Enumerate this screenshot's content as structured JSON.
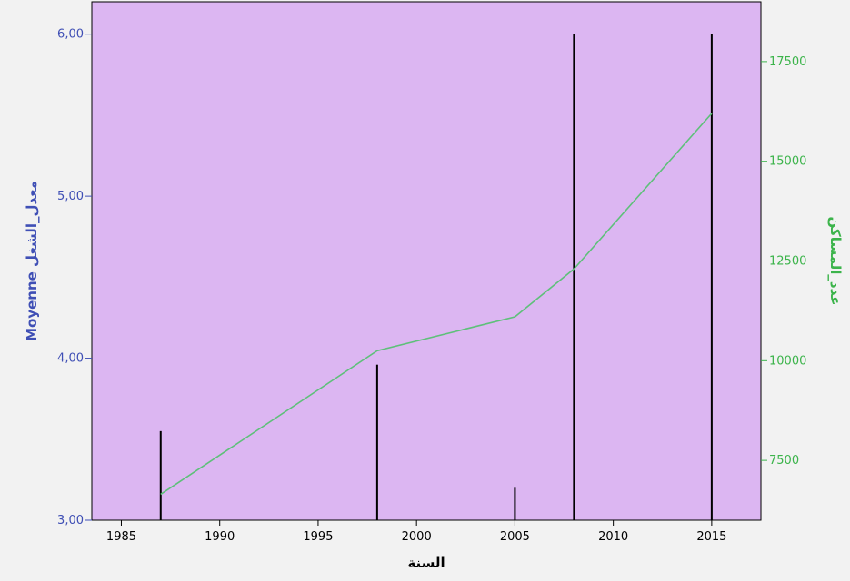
{
  "chart_data": {
    "type": "bar",
    "xlabel": "السنة",
    "ylabel_left": "Moyenne معدل_الشغل",
    "ylabel_right": "عدد_المساكن",
    "xlim": [
      1983.5,
      2017.5
    ],
    "ylim_left": [
      3.0,
      6.2
    ],
    "ylim_right": [
      6000,
      19000
    ],
    "x_ticks": [
      1985,
      1990,
      1995,
      2000,
      2005,
      2010,
      2015
    ],
    "x_tick_labels": [
      "1985",
      "1990",
      "1995",
      "2000",
      "2005",
      "2010",
      "2015"
    ],
    "y_left_ticks": [
      3,
      4,
      5,
      6
    ],
    "y_left_tick_labels": [
      "3,00",
      "4,00",
      "5,00",
      "6,00"
    ],
    "y_right_ticks": [
      7500,
      10000,
      12500,
      15000,
      17500
    ],
    "y_right_tick_labels": [
      "7500",
      "10000",
      "12500",
      "15000",
      "17500"
    ],
    "series": [
      {
        "axis": "left",
        "type": "bar",
        "x": [
          1987,
          1998,
          2005,
          2008,
          2015
        ],
        "values": [
          3.55,
          3.96,
          3.2,
          6.0,
          6.0
        ]
      },
      {
        "axis": "right",
        "type": "line",
        "x": [
          1987,
          1998,
          2005,
          2008,
          2015
        ],
        "values": [
          6650,
          10250,
          11100,
          12300,
          16200
        ]
      }
    ]
  },
  "colors": {
    "plot_background": "#dcb6f2",
    "page_background": "#f2f2f2",
    "left_axis": "#3f4fb5",
    "right_axis": "#3cb44b",
    "bars": "#000000",
    "line": "#5ec07a"
  }
}
